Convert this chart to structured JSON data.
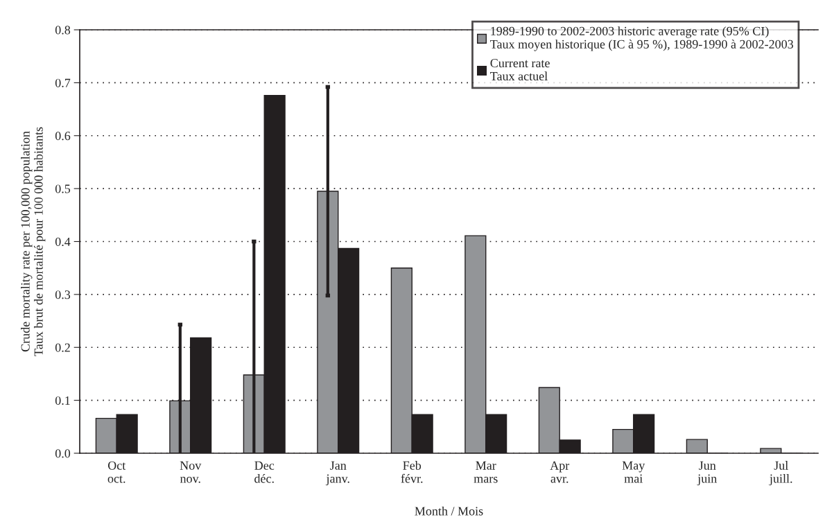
{
  "chart_data": {
    "type": "bar",
    "xlabel": "Month / Mois",
    "ylabel": "Crude mortality rate per 100,000 population\nTaux brut de mortalité pour 100 000 habitants",
    "categories": [
      "Oct\noct.",
      "Nov\nnov.",
      "Dec\ndéc.",
      "Jan\njanv.",
      "Feb\nfévr.",
      "Mar\nmars",
      "Apr\navr.",
      "May\nmai",
      "Jun\njuin",
      "Jul\njuill."
    ],
    "series": [
      {
        "name": "1989-1990 to 2002-2003 historic average rate (95% CI)\nTaux moyen historique (IC à 95 %), 1989-1990 à 2002-2003",
        "color": "#939598",
        "values": [
          0.066,
          0.099,
          0.148,
          0.495,
          0.35,
          0.411,
          0.124,
          0.045,
          0.026,
          0.009
        ],
        "errors": [
          null,
          [
            0,
            0.243
          ],
          [
            0,
            0.4
          ],
          [
            0.298,
            0.692
          ],
          null,
          null,
          null,
          null,
          null,
          null
        ]
      },
      {
        "name": "Current rate\nTaux actuel",
        "color": "#231f20",
        "values": [
          0.073,
          0.218,
          0.676,
          0.387,
          0.073,
          0.073,
          0.025,
          0.073,
          0,
          0
        ]
      }
    ],
    "ylim": [
      0,
      0.8
    ],
    "yticks": [
      {
        "value": 0,
        "label": "0.0"
      },
      {
        "value": 0.1,
        "label": "0.1"
      },
      {
        "value": 0.2,
        "label": "0.2"
      },
      {
        "value": 0.3,
        "label": "0.3"
      },
      {
        "value": 0.4,
        "label": "0.4"
      },
      {
        "value": 0.5,
        "label": "0.5"
      },
      {
        "value": 0.6,
        "label": "0.6"
      },
      {
        "value": 0.7,
        "label": "0.7"
      },
      {
        "value": 0.8,
        "label": "0.8"
      }
    ],
    "grid": "y",
    "legend": "top right"
  }
}
